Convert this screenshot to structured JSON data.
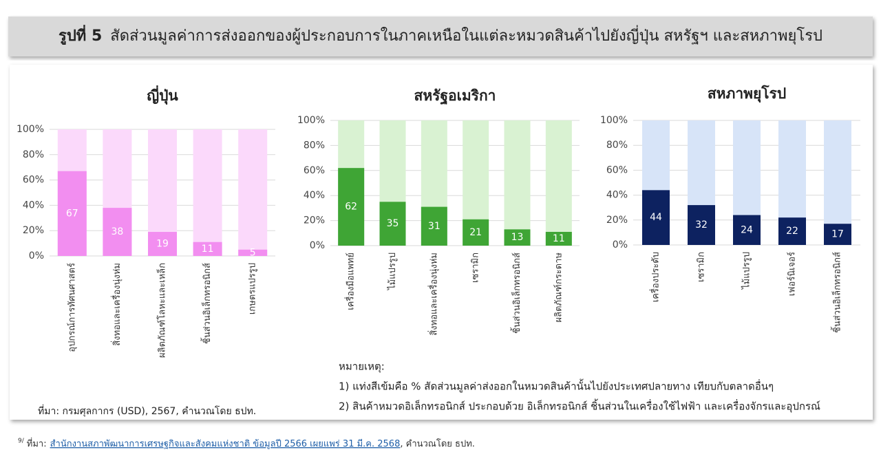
{
  "header": {
    "label": "รูปที่ 5",
    "title": "สัดส่วนมูลค่าการส่งออกของผู้ประกอบการในภาคเหนือในแต่ละหมวดสินค้าไปยังญี่ปุ่น สหรัฐฯ และสหภาพยุโรป"
  },
  "chart_data": [
    {
      "type": "bar",
      "title": "ญี่ปุ่น",
      "categories": [
        "อุปกรณ์การทัศนศาสตร์",
        "สิ่งทอและเครื่องนุ่งห่ม",
        "ผลิตภัณฑ์โลหะและเหล็ก",
        "ชิ้นส่วนอิเล็กทรอนิกส์",
        "เกษตรแปรรูป"
      ],
      "values": [
        67,
        38,
        19,
        11,
        5
      ],
      "color": "#f28ef0",
      "background_color": "#fbd9fb",
      "ylim": [
        0,
        100
      ],
      "yticks": [
        {
          "value": 0,
          "label": "0%"
        },
        {
          "value": 20,
          "label": "20%"
        },
        {
          "value": 40,
          "label": "40%"
        },
        {
          "value": 60,
          "label": "60%"
        },
        {
          "value": 80,
          "label": "80%"
        },
        {
          "value": 100,
          "label": "100%"
        }
      ],
      "grid": true
    },
    {
      "type": "bar",
      "title": "สหรัฐอเมริกา",
      "categories": [
        "เครื่องมือแพทย์",
        "ไม้แปรรูป",
        "สิ่งทอและเครื่องนุ่งห่ม",
        "เซรามิก",
        "ชิ้นส่วนอิเล็กทรอนิกส์",
        "ผลิตภัณฑ์กระดาษ"
      ],
      "values": [
        62,
        35,
        31,
        21,
        13,
        11
      ],
      "color": "#3fa535",
      "background_color": "#d9f2d2",
      "ylim": [
        0,
        100
      ],
      "yticks": [
        {
          "value": 0,
          "label": "0%"
        },
        {
          "value": 20,
          "label": "20%"
        },
        {
          "value": 40,
          "label": "40%"
        },
        {
          "value": 60,
          "label": "60%"
        },
        {
          "value": 80,
          "label": "80%"
        },
        {
          "value": 100,
          "label": "100%"
        }
      ],
      "grid": true
    },
    {
      "type": "bar",
      "title": "สหภาพยุโรป",
      "categories": [
        "เครื่องประดับ",
        "เซรามิก",
        "ไม้แปรรูป",
        "เฟอร์นิเจอร์",
        "ชิ้นส่วนอิเล็กทรอนิกส์"
      ],
      "values": [
        44,
        32,
        24,
        22,
        17
      ],
      "color": "#0d2260",
      "background_color": "#d7e4f8",
      "ylim": [
        0,
        100
      ],
      "yticks": [
        {
          "value": 0,
          "label": "0%"
        },
        {
          "value": 20,
          "label": "20%"
        },
        {
          "value": 40,
          "label": "40%"
        },
        {
          "value": 60,
          "label": "60%"
        },
        {
          "value": 80,
          "label": "80%"
        },
        {
          "value": 100,
          "label": "100%"
        }
      ],
      "grid": true
    }
  ],
  "notes": {
    "heading": "หมายเหตุ:",
    "items": [
      "1) แท่งสีเข้มคือ % สัดส่วนมูลค่าส่งออกในหมวดสินค้านั้นไปยังประเทศปลายทาง เทียบกับตลาดอื่นๆ",
      "2) สินค้าหมวดอิเล็กทรอนิกส์ ประกอบด้วย อิเล็กทรอนิกส์ ชิ้นส่วนในเครื่องใช้ไฟฟ้า และเครื่องจักรและอุปกรณ์"
    ]
  },
  "source": "ที่มา: กรมศุลกากร (USD), 2567, คำนวณโดย ธปท.",
  "footnote": {
    "marker": "9/",
    "prefix": "ที่มา:",
    "link": "สำนักงานสภาพัฒนาการเศรษฐกิจและสังคมแห่งชาติ ข้อมูลปี 2566 เผยแพร่ 31 มี.ค. 2568",
    "suffix": ", คำนวณโดย ธปท."
  }
}
